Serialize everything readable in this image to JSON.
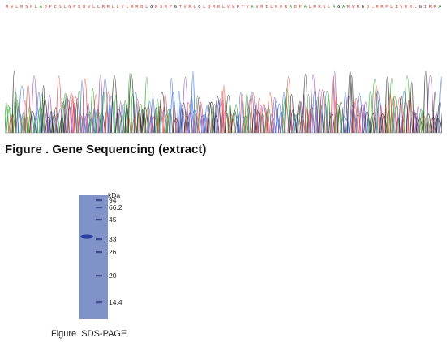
{
  "sequence": {
    "letters": "RVLRSPLADPESLNPEBVLLRRLLYLRRBLGRSRPGTVRLGLQRRLVVRTVAVRILRPRADPALRRLLAGARVRGQLRRPLIVRRLGIRRA",
    "colors": {
      "A": "#2ca02c",
      "C": "#3b6bd6",
      "G": "#222222",
      "T": "#e0483f"
    },
    "trace_colors": [
      "#222222",
      "#3b6bd6",
      "#2ca02c",
      "#e0483f",
      "#8e44ad"
    ]
  },
  "caption_top": "Figure . Gene Sequencing (extract)",
  "gel": {
    "unit_label": "kDa",
    "markers": [
      "94",
      "66.2",
      "45",
      "33",
      "26",
      "20",
      "14.4"
    ],
    "gel_color": "#7f93c9",
    "band_color": "#2b3fa0"
  },
  "caption_bottom": "Figure. SDS-PAGE"
}
